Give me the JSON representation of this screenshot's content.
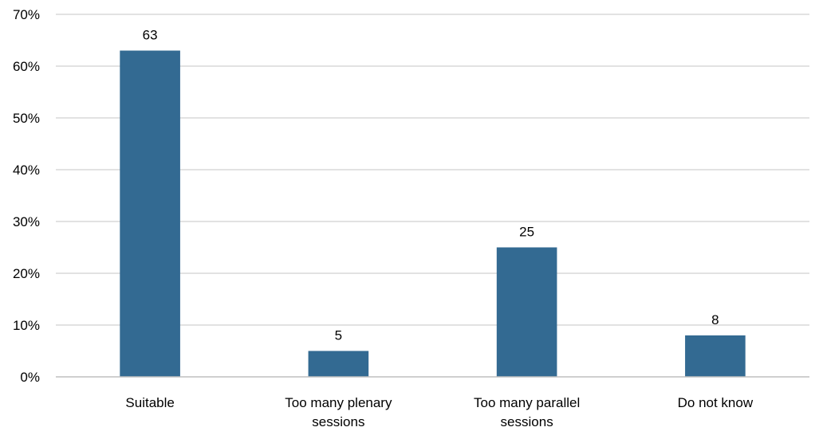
{
  "chart_data": {
    "type": "bar",
    "categories": [
      [
        "Suitable"
      ],
      [
        "Too many plenary",
        "sessions"
      ],
      [
        "Too many parallel",
        "sessions"
      ],
      [
        "Do not know"
      ]
    ],
    "values": [
      63,
      5,
      25,
      8
    ],
    "data_labels": [
      "63",
      "5",
      "25",
      "8"
    ],
    "title": "",
    "xlabel": "",
    "ylabel": "",
    "ylim": [
      0,
      70
    ],
    "yticks": [
      0,
      10,
      20,
      30,
      40,
      50,
      60,
      70
    ],
    "ytick_labels": [
      "0%",
      "10%",
      "20%",
      "30%",
      "40%",
      "50%",
      "60%",
      "70%"
    ],
    "grid": true,
    "legend": "none",
    "bar_color": "#336a92"
  }
}
